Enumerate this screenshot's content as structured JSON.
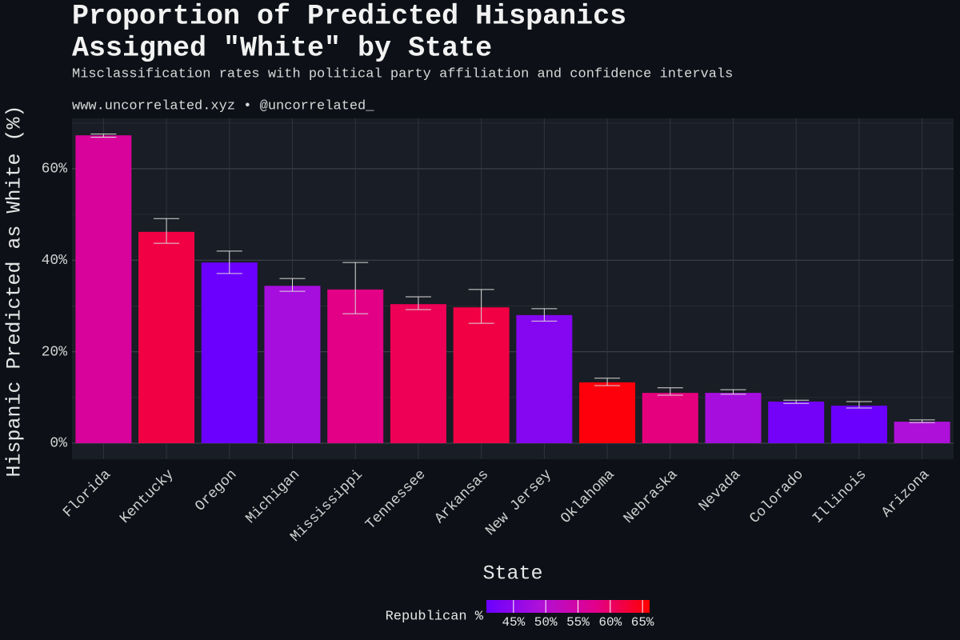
{
  "chart_data": {
    "type": "bar",
    "title": [
      "Proportion of Predicted Hispanics",
      "Assigned \"White\" by State"
    ],
    "subtitle": "Misclassification rates with political party affiliation and confidence intervals",
    "caption": "www.uncorrelated.xyz • @uncorrelated_",
    "x_label": "State",
    "y_label": "Hispanic Predicted as White (%)",
    "categories": [
      "Florida",
      "Kentucky",
      "Oregon",
      "Michigan",
      "Mississippi",
      "Tennessee",
      "Arkansas",
      "New Jersey",
      "Oklahoma",
      "Nebraska",
      "Nevada",
      "Colorado",
      "Illinois",
      "Arizona"
    ],
    "values": [
      67.3,
      46.2,
      39.5,
      34.4,
      33.6,
      30.4,
      29.7,
      28.0,
      13.3,
      11.0,
      11.0,
      9.1,
      8.2,
      4.7
    ],
    "ci_low": [
      66.9,
      43.7,
      37.1,
      33.2,
      28.3,
      29.2,
      26.2,
      26.7,
      12.6,
      10.5,
      10.7,
      8.7,
      7.7,
      4.5
    ],
    "ci_high": [
      67.6,
      49.1,
      42.0,
      36.0,
      39.5,
      32.0,
      33.6,
      29.4,
      14.2,
      12.1,
      11.7,
      9.4,
      9.1,
      5.1
    ],
    "color_values": [
      56,
      62,
      41,
      48,
      58,
      61,
      62,
      44,
      65.4,
      58.5,
      48,
      42,
      41,
      49
    ],
    "color_title": "Republican %",
    "color_lim": [
      40.8,
      66.1
    ],
    "color_scale": [
      "#6a00ff",
      "#b010d8",
      "#e2008c",
      "#ff0000"
    ],
    "color_ticks": [
      {
        "value": 45,
        "label": "45%"
      },
      {
        "value": 50,
        "label": "50%"
      },
      {
        "value": 55,
        "label": "55%"
      },
      {
        "value": 60,
        "label": "60%"
      },
      {
        "value": 65,
        "label": "65%"
      }
    ],
    "ylim": [
      -3.5,
      71
    ],
    "yticks": [
      {
        "value": 0,
        "label": "0%"
      },
      {
        "value": 20,
        "label": "20%"
      },
      {
        "value": 40,
        "label": "40%"
      },
      {
        "value": 60,
        "label": "60%"
      }
    ],
    "minor_yticks": [
      10,
      30,
      50,
      70
    ],
    "grid": true
  }
}
